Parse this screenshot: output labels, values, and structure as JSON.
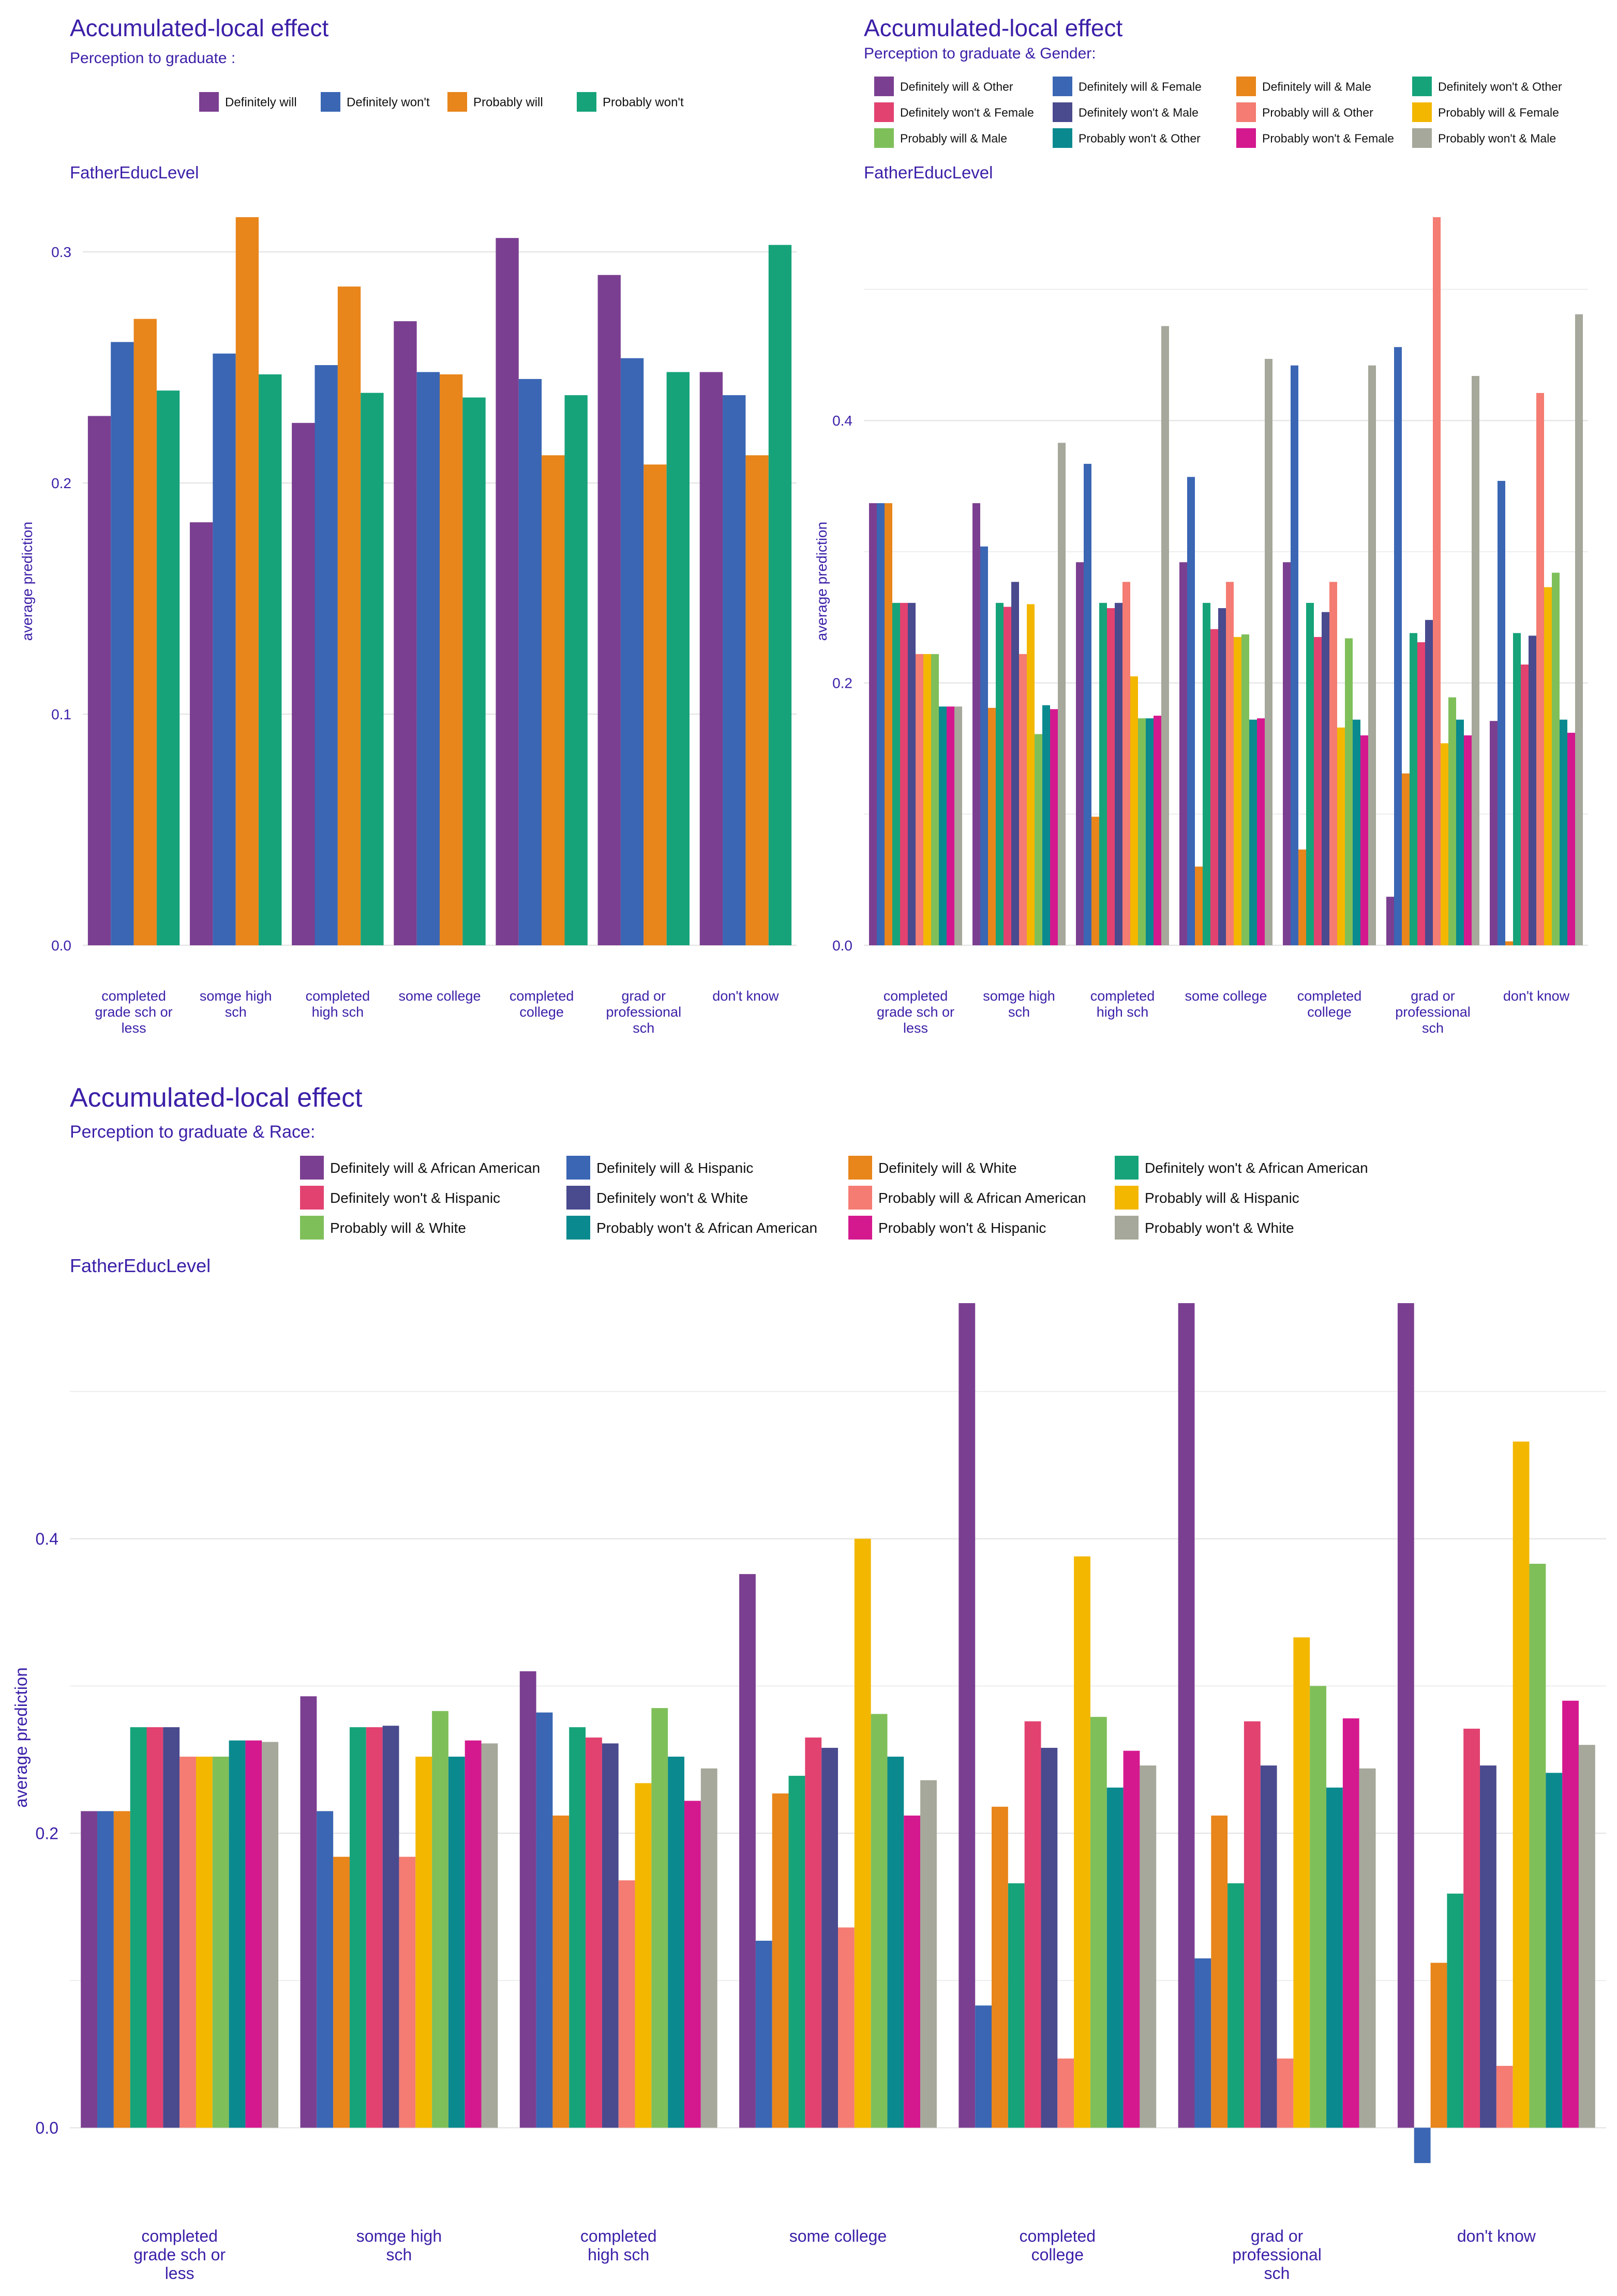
{
  "palette": {
    "title": "#3c1fa8",
    "grid": "#e6e6e6",
    "Definitely will": "#7b3f91",
    "Definitely won't": "#3a66b4",
    "Probably will": "#e8851b",
    "Probably won't": "#16a37a",
    "Definitely will & Other": "#7b3f91",
    "Definitely will & Female": "#3a66b4",
    "Definitely will & Male": "#e8851b",
    "Definitely won't & Other": "#16a37a",
    "Definitely won't & Female": "#e24270",
    "Definitely won't & Male": "#4a4a8f",
    "Probably will & Other": "#f47c72",
    "Probably will & Female": "#f3b700",
    "Probably will & Male": "#7fbf5a",
    "Probably won't & Other": "#0a8a8f",
    "Probably won't & Female": "#d4198f",
    "Probably won't & Male": "#a5a89a",
    "Definitely will & African American": "#7b3f91",
    "Definitely will & Hispanic": "#3a66b4",
    "Definitely will & White": "#e8851b",
    "Definitely won't & African American": "#16a37a",
    "Definitely won't & Hispanic": "#e24270",
    "Definitely won't & White": "#4a4a8f",
    "Probably will & African American": "#f47c72",
    "Probably will & Hispanic": "#f3b700",
    "Probably will & White": "#7fbf5a",
    "Probably won't & African American": "#0a8a8f",
    "Probably won't & Hispanic": "#d4198f",
    "Probably won't & White": "#a5a89a"
  },
  "chart_data": [
    {
      "type": "bar",
      "title": "Accumulated-local effect",
      "subtitle": "Perception to graduate :",
      "facet_label": "FatherEducLevel",
      "xlabel": "",
      "ylabel": "average prediction",
      "ylim": [
        0,
        0.315
      ],
      "yticks": [
        0.0,
        0.1,
        0.2,
        0.3
      ],
      "ytick_labels": [
        "0.0",
        "0.1",
        "0.2",
        "0.3"
      ],
      "legend_position": "top",
      "legend_cols": 4,
      "categories": [
        "completed\ngrade sch or\nless",
        "somge high\nsch",
        "completed\nhigh sch",
        "some college",
        "completed\ncollege",
        "grad or\nprofessional\nsch",
        "don't know"
      ],
      "series": [
        {
          "name": "Definitely will",
          "values": [
            0.229,
            0.183,
            0.226,
            0.27,
            0.306,
            0.29,
            0.248
          ]
        },
        {
          "name": "Definitely won't",
          "values": [
            0.261,
            0.256,
            0.251,
            0.248,
            0.245,
            0.254,
            0.238
          ]
        },
        {
          "name": "Probably will",
          "values": [
            0.271,
            0.315,
            0.285,
            0.247,
            0.212,
            0.208,
            0.212
          ]
        },
        {
          "name": "Probably won't",
          "values": [
            0.24,
            0.247,
            0.239,
            0.237,
            0.238,
            0.248,
            0.303
          ]
        }
      ]
    },
    {
      "type": "bar",
      "title": "Accumulated-local effect",
      "subtitle": "Perception to graduate & Gender:",
      "facet_label": "FatherEducLevel",
      "xlabel": "",
      "ylabel": "average prediction",
      "ylim": [
        0,
        0.555
      ],
      "yticks": [
        0.0,
        0.2,
        0.4
      ],
      "ytick_labels": [
        "0.0",
        "0.2",
        "0.4"
      ],
      "minor_yticks": [
        0.1,
        0.3,
        0.5
      ],
      "legend_position": "top",
      "legend_cols": 4,
      "categories": [
        "completed\ngrade sch or\nless",
        "somge high\nsch",
        "completed\nhigh sch",
        "some college",
        "completed\ncollege",
        "grad or\nprofessional\nsch",
        "don't know"
      ],
      "series": [
        {
          "name": "Definitely will & Other",
          "values": [
            0.337,
            0.337,
            0.292,
            0.292,
            0.292,
            0.037,
            0.171
          ]
        },
        {
          "name": "Definitely will & Female",
          "values": [
            0.337,
            0.304,
            0.367,
            0.357,
            0.442,
            0.456,
            0.354
          ]
        },
        {
          "name": "Definitely will & Male",
          "values": [
            0.337,
            0.181,
            0.098,
            0.06,
            0.073,
            0.131,
            0.003
          ]
        },
        {
          "name": "Definitely won't & Other",
          "values": [
            0.261,
            0.261,
            0.261,
            0.261,
            0.261,
            0.238,
            0.238
          ]
        },
        {
          "name": "Definitely won't & Female",
          "values": [
            0.261,
            0.258,
            0.257,
            0.241,
            0.235,
            0.231,
            0.214
          ]
        },
        {
          "name": "Definitely won't & Male",
          "values": [
            0.261,
            0.277,
            0.261,
            0.257,
            0.254,
            0.248,
            0.236
          ]
        },
        {
          "name": "Probably will & Other",
          "values": [
            0.222,
            0.222,
            0.277,
            0.277,
            0.277,
            0.555,
            0.421
          ]
        },
        {
          "name": "Probably will & Female",
          "values": [
            0.222,
            0.26,
            0.205,
            0.235,
            0.166,
            0.154,
            0.273
          ]
        },
        {
          "name": "Probably will & Male",
          "values": [
            0.222,
            0.161,
            0.173,
            0.237,
            0.234,
            0.189,
            0.284
          ]
        },
        {
          "name": "Probably won't & Other",
          "values": [
            0.182,
            0.183,
            0.173,
            0.172,
            0.172,
            0.172,
            0.172
          ]
        },
        {
          "name": "Probably won't & Female",
          "values": [
            0.182,
            0.18,
            0.175,
            0.173,
            0.16,
            0.16,
            0.162
          ]
        },
        {
          "name": "Probably won't & Male",
          "values": [
            0.182,
            0.383,
            0.472,
            0.447,
            0.442,
            0.434,
            0.481
          ]
        }
      ]
    },
    {
      "type": "bar",
      "title": "Accumulated-local effect",
      "subtitle": "Perception to graduate & Race:",
      "facet_label": "FatherEducLevel",
      "xlabel": "",
      "ylabel": "average prediction",
      "ylim": [
        -0.03,
        0.56
      ],
      "yticks": [
        0.0,
        0.2,
        0.4
      ],
      "ytick_labels": [
        "0.0",
        "0.2",
        "0.4"
      ],
      "minor_yticks": [
        0.1,
        0.3,
        0.5
      ],
      "legend_position": "top",
      "legend_cols": 4,
      "categories": [
        "completed\ngrade sch or\nless",
        "somge high\nsch",
        "completed\nhigh sch",
        "some college",
        "completed\ncollege",
        "grad or\nprofessional\nsch",
        "don't know"
      ],
      "series": [
        {
          "name": "Definitely will & African American",
          "values": [
            0.215,
            0.293,
            0.31,
            0.376,
            0.56,
            0.56,
            0.56
          ]
        },
        {
          "name": "Definitely will & Hispanic",
          "values": [
            0.215,
            0.215,
            0.282,
            0.127,
            0.083,
            0.115,
            -0.024
          ]
        },
        {
          "name": "Definitely will & White",
          "values": [
            0.215,
            0.184,
            0.212,
            0.227,
            0.218,
            0.212,
            0.112
          ]
        },
        {
          "name": "Definitely won't & African American",
          "values": [
            0.272,
            0.272,
            0.272,
            0.239,
            0.166,
            0.166,
            0.159
          ]
        },
        {
          "name": "Definitely won't & Hispanic",
          "values": [
            0.272,
            0.272,
            0.265,
            0.265,
            0.276,
            0.276,
            0.271
          ]
        },
        {
          "name": "Definitely won't & White",
          "values": [
            0.272,
            0.273,
            0.261,
            0.258,
            0.258,
            0.246,
            0.246
          ]
        },
        {
          "name": "Probably will & African American",
          "values": [
            0.252,
            0.184,
            0.168,
            0.136,
            0.047,
            0.047,
            0.042
          ]
        },
        {
          "name": "Probably will & Hispanic",
          "values": [
            0.252,
            0.252,
            0.234,
            0.4,
            0.388,
            0.333,
            0.466
          ]
        },
        {
          "name": "Probably will & White",
          "values": [
            0.252,
            0.283,
            0.285,
            0.281,
            0.279,
            0.3,
            0.383
          ]
        },
        {
          "name": "Probably won't & African American",
          "values": [
            0.263,
            0.252,
            0.252,
            0.252,
            0.231,
            0.231,
            0.241
          ]
        },
        {
          "name": "Probably won't & Hispanic",
          "values": [
            0.263,
            0.263,
            0.222,
            0.212,
            0.256,
            0.278,
            0.29
          ]
        },
        {
          "name": "Probably won't & White",
          "values": [
            0.262,
            0.261,
            0.244,
            0.236,
            0.246,
            0.244,
            0.26
          ]
        }
      ]
    }
  ]
}
